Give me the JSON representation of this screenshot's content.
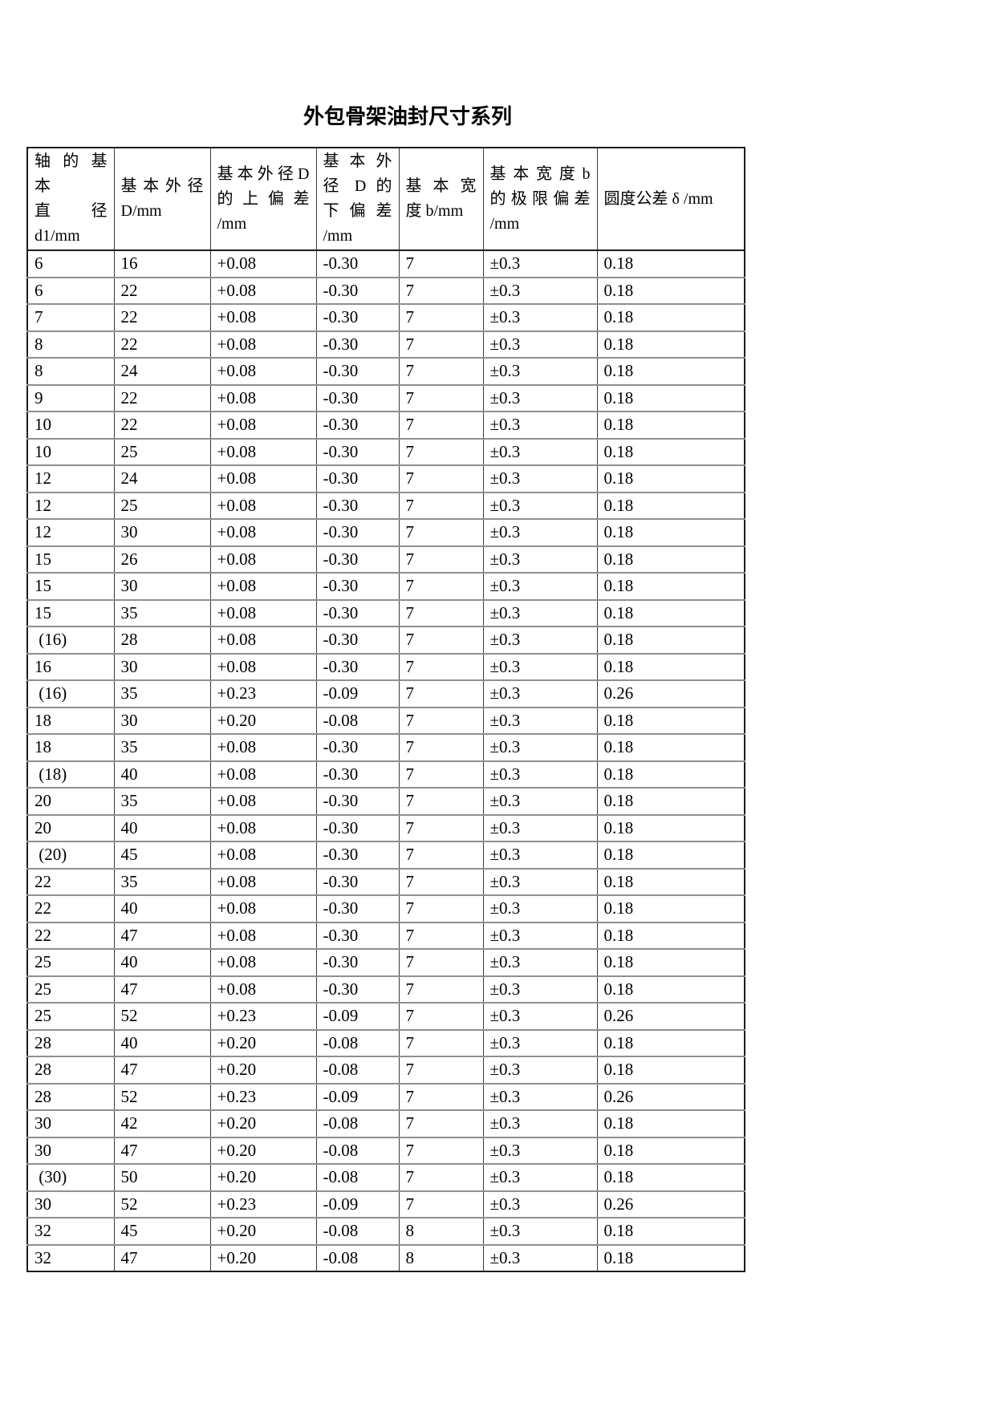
{
  "page": {
    "title": "外包骨架油封尺寸系列"
  },
  "table": {
    "columns": [
      {
        "id": "shaft-basic-diameter",
        "lines": [
          "轴 的 基 本",
          "直 径",
          "d1/mm"
        ]
      },
      {
        "id": "basic-outer-diameter",
        "lines": [
          "基 本 外 径",
          "D/mm"
        ]
      },
      {
        "id": "outer-diameter-upper-deviation",
        "lines": [
          "基 本 外 径 D",
          "的 上 偏 差",
          "/mm"
        ]
      },
      {
        "id": "outer-diameter-lower-deviation",
        "lines": [
          "基 本 外",
          "径 D 的",
          "下 偏 差",
          "/mm"
        ]
      },
      {
        "id": "basic-width",
        "lines": [
          "基 本 宽",
          "度 b/mm"
        ]
      },
      {
        "id": "width-limit-deviation",
        "lines": [
          "基 本 宽 度 b",
          "的 极 限 偏 差",
          "/mm"
        ]
      },
      {
        "id": "roundness-tolerance",
        "lines": [
          "圆度公差 δ /mm"
        ]
      }
    ],
    "rows": [
      [
        "6",
        "16",
        "+0.08",
        "-0.30",
        "7",
        "±0.3",
        "0.18"
      ],
      [
        "6",
        "22",
        "+0.08",
        "-0.30",
        "7",
        "±0.3",
        "0.18"
      ],
      [
        "7",
        "22",
        "+0.08",
        "-0.30",
        "7",
        "±0.3",
        "0.18"
      ],
      [
        "8",
        "22",
        "+0.08",
        "-0.30",
        "7",
        "±0.3",
        "0.18"
      ],
      [
        "8",
        "24",
        "+0.08",
        "-0.30",
        "7",
        "±0.3",
        "0.18"
      ],
      [
        "9",
        "22",
        "+0.08",
        "-0.30",
        "7",
        "±0.3",
        "0.18"
      ],
      [
        "10",
        "22",
        "+0.08",
        "-0.30",
        "7",
        "±0.3",
        "0.18"
      ],
      [
        "10",
        "25",
        "+0.08",
        "-0.30",
        "7",
        "±0.3",
        "0.18"
      ],
      [
        "12",
        "24",
        "+0.08",
        "-0.30",
        "7",
        "±0.3",
        "0.18"
      ],
      [
        "12",
        "25",
        "+0.08",
        "-0.30",
        "7",
        "±0.3",
        "0.18"
      ],
      [
        "12",
        "30",
        "+0.08",
        "-0.30",
        "7",
        "±0.3",
        "0.18"
      ],
      [
        "15",
        "26",
        "+0.08",
        "-0.30",
        "7",
        "±0.3",
        "0.18"
      ],
      [
        "15",
        "30",
        "+0.08",
        "-0.30",
        "7",
        "±0.3",
        "0.18"
      ],
      [
        "15",
        "35",
        "+0.08",
        "-0.30",
        "7",
        "±0.3",
        "0.18"
      ],
      [
        " (16)",
        "28",
        "+0.08",
        "-0.30",
        "7",
        "±0.3",
        "0.18"
      ],
      [
        "16",
        "30",
        "+0.08",
        "-0.30",
        "7",
        "±0.3",
        "0.18"
      ],
      [
        " (16)",
        "35",
        "+0.23",
        "-0.09",
        "7",
        "±0.3",
        "0.26"
      ],
      [
        "18",
        "30",
        "+0.20",
        "-0.08",
        "7",
        "±0.3",
        "0.18"
      ],
      [
        "18",
        "35",
        "+0.08",
        "-0.30",
        "7",
        "±0.3",
        "0.18"
      ],
      [
        " (18)",
        "40",
        "+0.08",
        "-0.30",
        "7",
        "±0.3",
        "0.18"
      ],
      [
        "20",
        "35",
        "+0.08",
        "-0.30",
        "7",
        "±0.3",
        "0.18"
      ],
      [
        "20",
        "40",
        "+0.08",
        "-0.30",
        "7",
        "±0.3",
        "0.18"
      ],
      [
        " (20)",
        "45",
        "+0.08",
        "-0.30",
        "7",
        "±0.3",
        "0.18"
      ],
      [
        "22",
        "35",
        "+0.08",
        "-0.30",
        "7",
        "±0.3",
        "0.18"
      ],
      [
        "22",
        "40",
        "+0.08",
        "-0.30",
        "7",
        "±0.3",
        "0.18"
      ],
      [
        "22",
        "47",
        "+0.08",
        "-0.30",
        "7",
        "±0.3",
        "0.18"
      ],
      [
        "25",
        "40",
        "+0.08",
        "-0.30",
        "7",
        "±0.3",
        "0.18"
      ],
      [
        "25",
        "47",
        "+0.08",
        "-0.30",
        "7",
        "±0.3",
        "0.18"
      ],
      [
        "25",
        "52",
        "+0.23",
        "-0.09",
        "7",
        "±0.3",
        "0.26"
      ],
      [
        "28",
        "40",
        "+0.20",
        "-0.08",
        "7",
        "±0.3",
        "0.18"
      ],
      [
        "28",
        "47",
        "+0.20",
        "-0.08",
        "7",
        "±0.3",
        "0.18"
      ],
      [
        "28",
        "52",
        "+0.23",
        "-0.09",
        "7",
        "±0.3",
        "0.26"
      ],
      [
        "30",
        "42",
        "+0.20",
        "-0.08",
        "7",
        "±0.3",
        "0.18"
      ],
      [
        "30",
        "47",
        "+0.20",
        "-0.08",
        "7",
        "±0.3",
        "0.18"
      ],
      [
        " (30)",
        "50",
        "+0.20",
        "-0.08",
        "7",
        "±0.3",
        "0.18"
      ],
      [
        "30",
        "52",
        "+0.23",
        "-0.09",
        "7",
        "±0.3",
        "0.26"
      ],
      [
        "32",
        "45",
        "+0.20",
        "-0.08",
        "8",
        "±0.3",
        "0.18"
      ],
      [
        "32",
        "47",
        "+0.20",
        "-0.08",
        "8",
        "±0.3",
        "0.18"
      ]
    ]
  }
}
